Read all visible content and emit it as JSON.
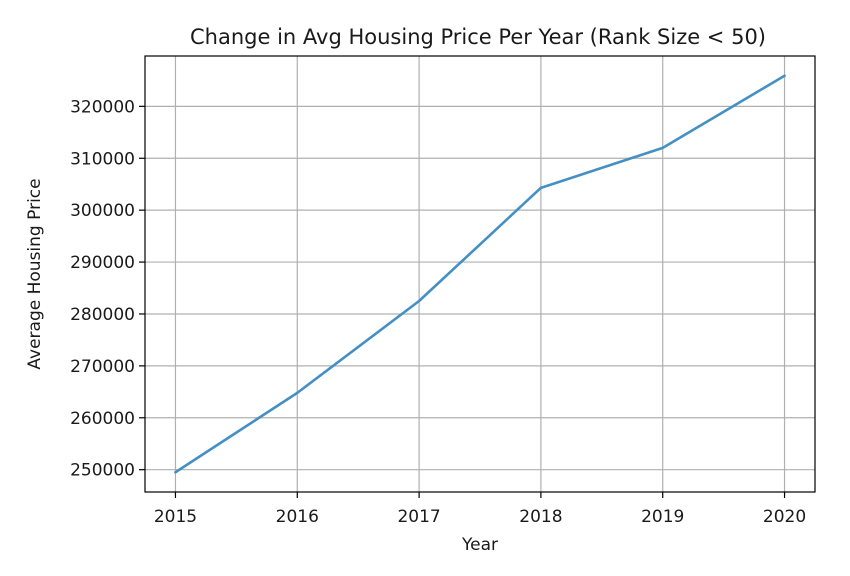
{
  "chart_data": {
    "type": "line",
    "title": "Change in Avg Housing Price Per Year (Rank Size < 50)",
    "xlabel": "Year",
    "ylabel": "Average Housing Price",
    "x": [
      2015,
      2016,
      2017,
      2018,
      2019,
      2020
    ],
    "series": [
      {
        "values": [
          249500,
          264800,
          282500,
          304300,
          312000,
          325900
        ],
        "color": "#4490c4"
      }
    ],
    "xticks": [
      "2015",
      "2016",
      "2017",
      "2018",
      "2019",
      "2020"
    ],
    "yticks": [
      "250000",
      "260000",
      "270000",
      "280000",
      "290000",
      "300000",
      "310000",
      "320000"
    ],
    "ytick_values": [
      250000,
      260000,
      270000,
      280000,
      290000,
      300000,
      310000,
      320000
    ],
    "xlim": [
      2014.75,
      2020.25
    ],
    "ylim": [
      245700,
      329700
    ],
    "grid": true,
    "colors": {
      "grid": "#b0b0b0",
      "axes": "#000000",
      "line": "#4490c4"
    }
  }
}
